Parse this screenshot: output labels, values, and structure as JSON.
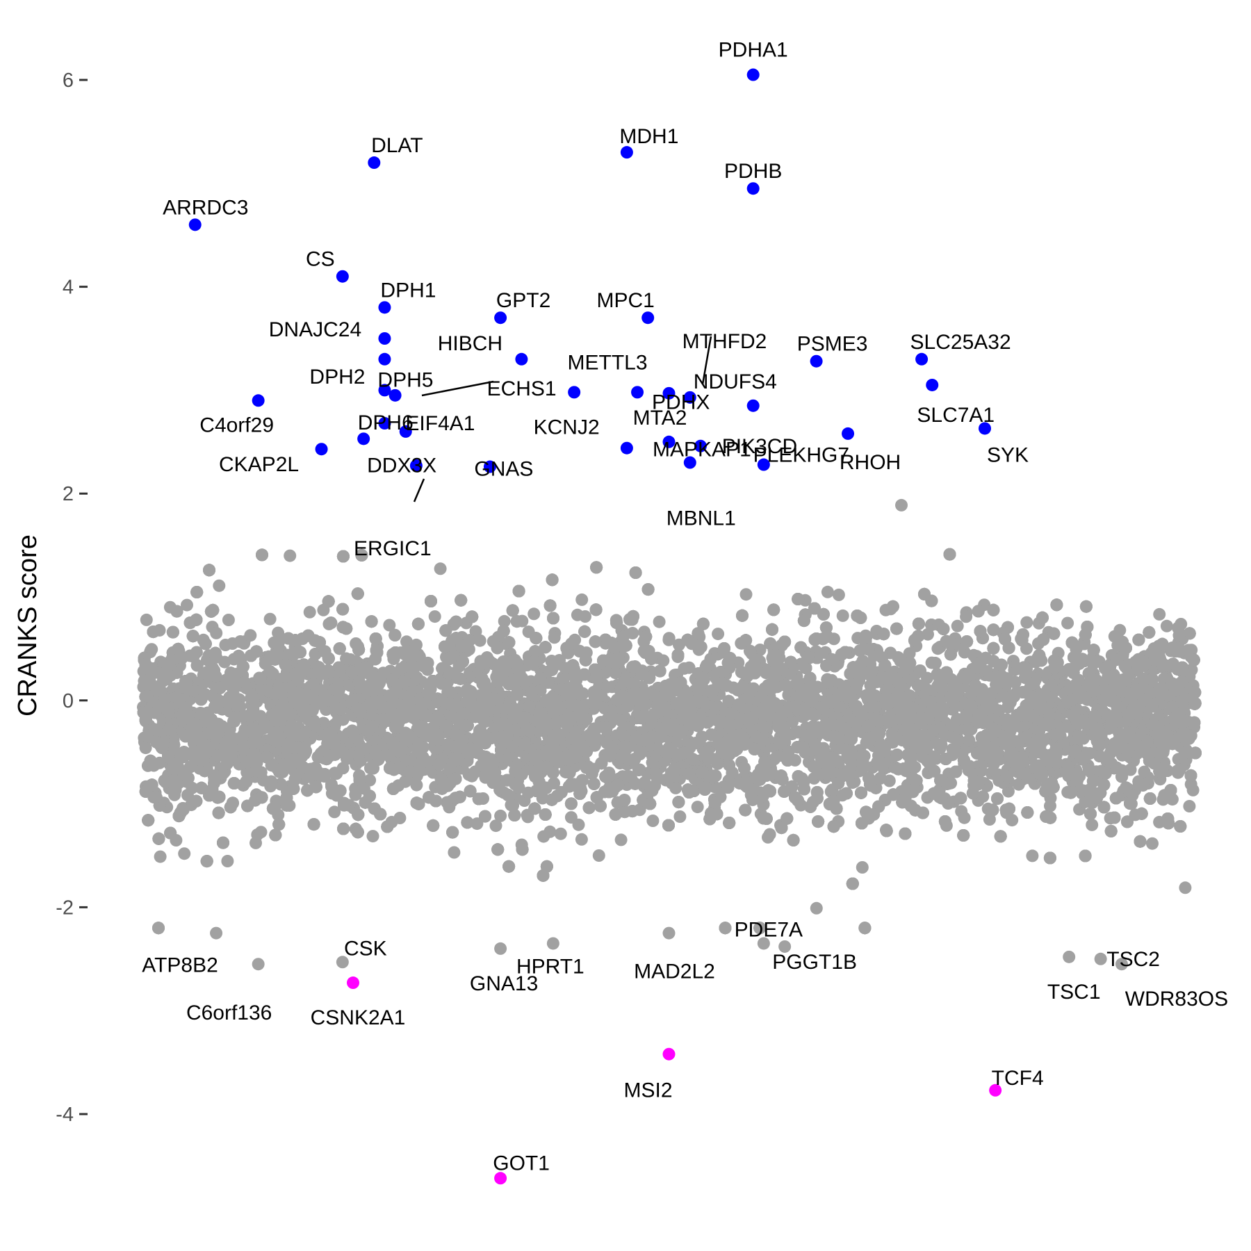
{
  "chart_data": {
    "type": "scatter",
    "ylabel": "CRANKS score",
    "xlabel": "",
    "ylim": [
      -4.9,
      6.35
    ],
    "yticks": [
      6,
      4,
      2,
      0,
      -2,
      -4
    ],
    "ytick_labels": [
      "6",
      "4",
      "2",
      "0",
      "-2",
      "-4"
    ],
    "x_axis_shown": false,
    "grid": false,
    "colors": {
      "background_points": "#a1a1a1",
      "positive": "#0000ff",
      "negative": "#ff00ff"
    },
    "background_distribution": {
      "n_points": 18000,
      "approx_mean": -0.2,
      "approx_sd": 0.45
    },
    "labeled_genes": [
      {
        "gene": "PDHA1",
        "x": 0.58,
        "y": 6.05,
        "group": "positive"
      },
      {
        "gene": "MDH1",
        "x": 0.46,
        "y": 5.3,
        "group": "positive"
      },
      {
        "gene": "DLAT",
        "x": 0.22,
        "y": 5.2,
        "group": "positive"
      },
      {
        "gene": "PDHB",
        "x": 0.58,
        "y": 4.95,
        "group": "positive"
      },
      {
        "gene": "ARRDC3",
        "x": 0.05,
        "y": 4.6,
        "group": "positive"
      },
      {
        "gene": "CS",
        "x": 0.19,
        "y": 4.1,
        "group": "positive"
      },
      {
        "gene": "DPH1",
        "x": 0.23,
        "y": 3.8,
        "group": "positive"
      },
      {
        "gene": "GPT2",
        "x": 0.34,
        "y": 3.7,
        "group": "positive"
      },
      {
        "gene": "MPC1",
        "x": 0.48,
        "y": 3.7,
        "group": "positive"
      },
      {
        "gene": "DNAJC24",
        "x": 0.23,
        "y": 3.5,
        "group": "positive"
      },
      {
        "gene": "HIBCH",
        "x": 0.36,
        "y": 3.3,
        "group": "positive"
      },
      {
        "gene": "PSME3",
        "x": 0.64,
        "y": 3.28,
        "group": "positive"
      },
      {
        "gene": "SLC25A32",
        "x": 0.74,
        "y": 3.3,
        "group": "positive"
      },
      {
        "gene": "DPH2",
        "x": 0.23,
        "y": 3.3,
        "group": "positive"
      },
      {
        "gene": "SLC7A1",
        "x": 0.75,
        "y": 3.05,
        "group": "positive"
      },
      {
        "gene": "DPH5",
        "x": 0.23,
        "y": 3.0,
        "group": "positive"
      },
      {
        "gene": "ECHS1",
        "x": 0.24,
        "y": 2.95,
        "group": "positive"
      },
      {
        "gene": "KCNJ2",
        "x": 0.41,
        "y": 2.98,
        "group": "positive"
      },
      {
        "gene": "METTL3",
        "x": 0.47,
        "y": 2.98,
        "group": "positive"
      },
      {
        "gene": "MTHFD2",
        "x": 0.5,
        "y": 2.97,
        "group": "positive"
      },
      {
        "gene": "NDUFS4",
        "x": 0.52,
        "y": 2.93,
        "group": "positive"
      },
      {
        "gene": "C4orf29",
        "x": 0.11,
        "y": 2.9,
        "group": "positive"
      },
      {
        "gene": "PDHX",
        "x": 0.58,
        "y": 2.85,
        "group": "positive"
      },
      {
        "gene": "EIF4A1",
        "x": 0.23,
        "y": 2.68,
        "group": "positive"
      },
      {
        "gene": "SYK",
        "x": 0.8,
        "y": 2.63,
        "group": "positive"
      },
      {
        "gene": "DPH6",
        "x": 0.25,
        "y": 2.6,
        "group": "positive"
      },
      {
        "gene": "RHOH",
        "x": 0.67,
        "y": 2.58,
        "group": "positive"
      },
      {
        "gene": "DDX3X",
        "x": 0.21,
        "y": 2.53,
        "group": "positive"
      },
      {
        "gene": "MTA2",
        "x": 0.5,
        "y": 2.5,
        "group": "positive"
      },
      {
        "gene": "PIK3CD",
        "x": 0.53,
        "y": 2.46,
        "group": "positive"
      },
      {
        "gene": "MAPKAP1",
        "x": 0.46,
        "y": 2.44,
        "group": "positive"
      },
      {
        "gene": "CKAP2L",
        "x": 0.17,
        "y": 2.43,
        "group": "positive"
      },
      {
        "gene": "MBNL1",
        "x": 0.52,
        "y": 2.3,
        "group": "positive"
      },
      {
        "gene": "PLEKHG7",
        "x": 0.59,
        "y": 2.28,
        "group": "positive"
      },
      {
        "gene": "ERGIC1",
        "x": 0.26,
        "y": 2.27,
        "group": "positive"
      },
      {
        "gene": "GNAS",
        "x": 0.33,
        "y": 2.26,
        "group": "positive"
      },
      {
        "gene": "ATP8B2",
        "x": 0.07,
        "y": -2.25,
        "group": "background"
      },
      {
        "gene": "CSK",
        "x": 0.19,
        "y": -2.53,
        "group": "background"
      },
      {
        "gene": "HPRT1",
        "x": 0.39,
        "y": -2.35,
        "group": "background"
      },
      {
        "gene": "PDE7A",
        "x": 0.59,
        "y": -2.35,
        "group": "background"
      },
      {
        "gene": "C6orf136",
        "x": 0.11,
        "y": -2.55,
        "group": "background"
      },
      {
        "gene": "GNA13",
        "x": 0.34,
        "y": -2.4,
        "group": "background"
      },
      {
        "gene": "MAD2L2",
        "x": 0.5,
        "y": -2.25,
        "group": "background"
      },
      {
        "gene": "PGGT1B",
        "x": 0.61,
        "y": -2.38,
        "group": "background"
      },
      {
        "gene": "TSC2",
        "x": 0.91,
        "y": -2.5,
        "group": "background"
      },
      {
        "gene": "TSC1",
        "x": 0.88,
        "y": -2.48,
        "group": "background"
      },
      {
        "gene": "WDR83OS",
        "x": 0.93,
        "y": -2.55,
        "group": "background"
      },
      {
        "gene": "CSNK2A1",
        "x": 0.2,
        "y": -2.73,
        "group": "negative"
      },
      {
        "gene": "MSI2",
        "x": 0.5,
        "y": -3.42,
        "group": "negative"
      },
      {
        "gene": "TCF4",
        "x": 0.81,
        "y": -3.77,
        "group": "negative"
      },
      {
        "gene": "GOT1",
        "x": 0.34,
        "y": -4.62,
        "group": "negative"
      }
    ]
  }
}
